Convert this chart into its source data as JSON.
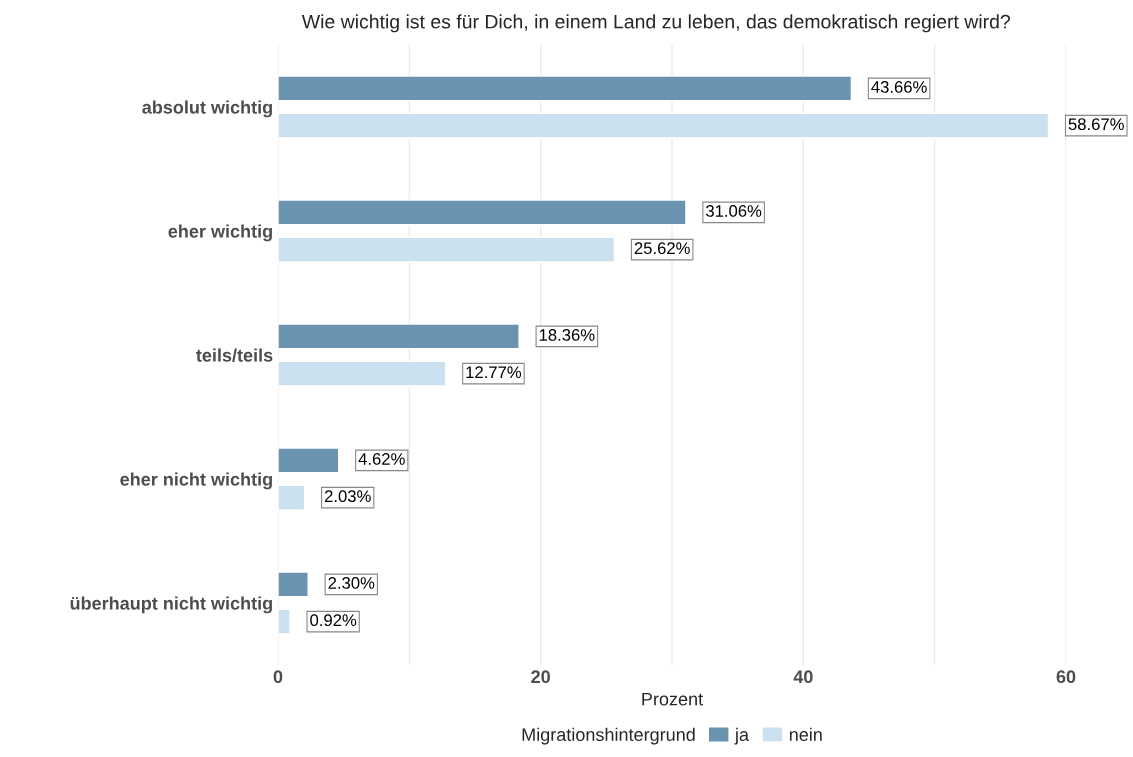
{
  "chart_data": {
    "type": "bar",
    "orientation": "horizontal",
    "title": "Wie wichtig ist es für Dich, in einem Land zu leben, das demokratisch regiert wird?",
    "xlabel": "Prozent",
    "legend_title": "Migrationshintergrund",
    "legend": "bottom",
    "grid": "x",
    "categories": [
      "absolut wichtig",
      "eher wichtig",
      "teils/teils",
      "eher nicht wichtig",
      "überhaupt nicht wichtig"
    ],
    "series": [
      {
        "name": "ja",
        "color": "#6a93b0",
        "values": [
          43.66,
          31.06,
          18.36,
          4.62,
          2.3
        ],
        "value_labels": [
          "43.66%",
          "31.06%",
          "18.36%",
          "4.62%",
          "2.30%"
        ]
      },
      {
        "name": "nein",
        "color": "#cce1ef",
        "values": [
          58.67,
          25.62,
          12.77,
          2.03,
          0.92
        ],
        "value_labels": [
          "58.67%",
          "25.62%",
          "12.77%",
          "2.03%",
          "0.92%"
        ]
      }
    ],
    "xlim": [
      0,
      60
    ],
    "xticks": [
      0,
      {
        "value": 10,
        "label": null
      },
      20,
      {
        "value": 30,
        "label": null
      },
      40,
      {
        "value": 50,
        "label": null
      },
      60
    ]
  }
}
